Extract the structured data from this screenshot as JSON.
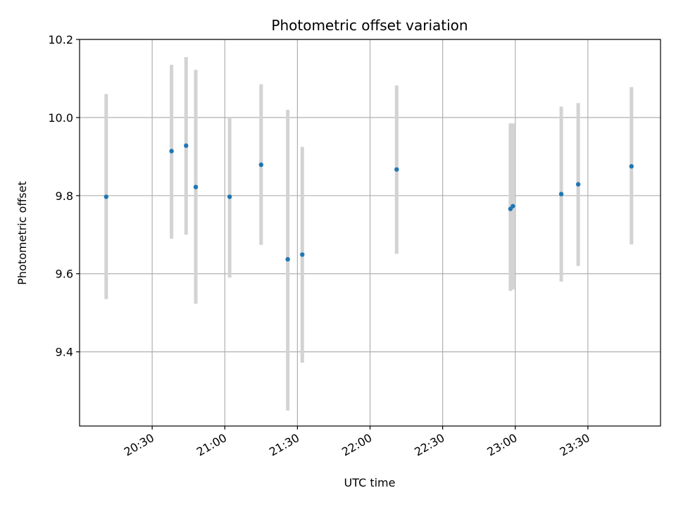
{
  "chart_data": {
    "type": "scatter",
    "title": "Photometric offset variation",
    "xlabel": "UTC time",
    "ylabel": "Photometric offset",
    "x_unit": "UTC time (HH:MM)",
    "xlim": [
      "20:00",
      "24:00"
    ],
    "ylim": [
      9.21,
      10.2
    ],
    "x_ticks": [
      "20:30",
      "21:00",
      "21:30",
      "22:00",
      "22:30",
      "23:00",
      "23:30"
    ],
    "y_ticks": [
      9.4,
      9.6,
      9.8,
      10.0,
      10.2
    ],
    "y_tick_labels": [
      "9.4",
      "9.6",
      "9.8",
      "10.0",
      "10.2"
    ],
    "grid": true,
    "point_color": "#1f77b4",
    "errorbar_color": "#d3d3d3",
    "points": [
      {
        "time": "20:11",
        "y": 9.797,
        "ylow": 9.535,
        "yhigh": 10.06
      },
      {
        "time": "20:38",
        "y": 9.914,
        "ylow": 9.69,
        "yhigh": 10.135
      },
      {
        "time": "20:44",
        "y": 9.928,
        "ylow": 9.7,
        "yhigh": 10.155
      },
      {
        "time": "20:48",
        "y": 9.822,
        "ylow": 9.523,
        "yhigh": 10.122
      },
      {
        "time": "21:02",
        "y": 9.797,
        "ylow": 9.59,
        "yhigh": 10.0
      },
      {
        "time": "21:15",
        "y": 9.879,
        "ylow": 9.674,
        "yhigh": 10.085
      },
      {
        "time": "21:26",
        "y": 9.637,
        "ylow": 9.25,
        "yhigh": 10.02
      },
      {
        "time": "21:32",
        "y": 9.649,
        "ylow": 9.372,
        "yhigh": 9.925
      },
      {
        "time": "22:11",
        "y": 9.867,
        "ylow": 9.651,
        "yhigh": 10.082
      },
      {
        "time": "22:58",
        "y": 9.766,
        "ylow": 9.556,
        "yhigh": 9.985
      },
      {
        "time": "22:59",
        "y": 9.773,
        "ylow": 9.56,
        "yhigh": 9.985
      },
      {
        "time": "23:19",
        "y": 9.804,
        "ylow": 9.58,
        "yhigh": 10.028
      },
      {
        "time": "23:26",
        "y": 9.829,
        "ylow": 9.62,
        "yhigh": 10.037
      },
      {
        "time": "23:48",
        "y": 9.875,
        "ylow": 9.675,
        "yhigh": 10.078
      }
    ]
  }
}
